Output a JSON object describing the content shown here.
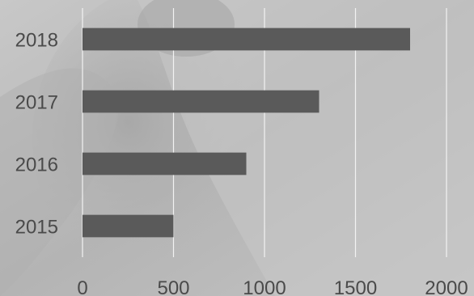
{
  "chart_data": {
    "type": "bar",
    "orientation": "horizontal",
    "categories": [
      "2018",
      "2017",
      "2016",
      "2015"
    ],
    "values": [
      1800,
      1300,
      900,
      500
    ],
    "xlim": [
      0,
      2000
    ],
    "x_ticks": [
      "0",
      "500",
      "1000",
      "1500",
      "2000"
    ],
    "grid": true,
    "legend": "none",
    "bar_color": "#5a5a5a",
    "grid_color": "#f2f2f2",
    "label_color": "#4a4a4a"
  }
}
